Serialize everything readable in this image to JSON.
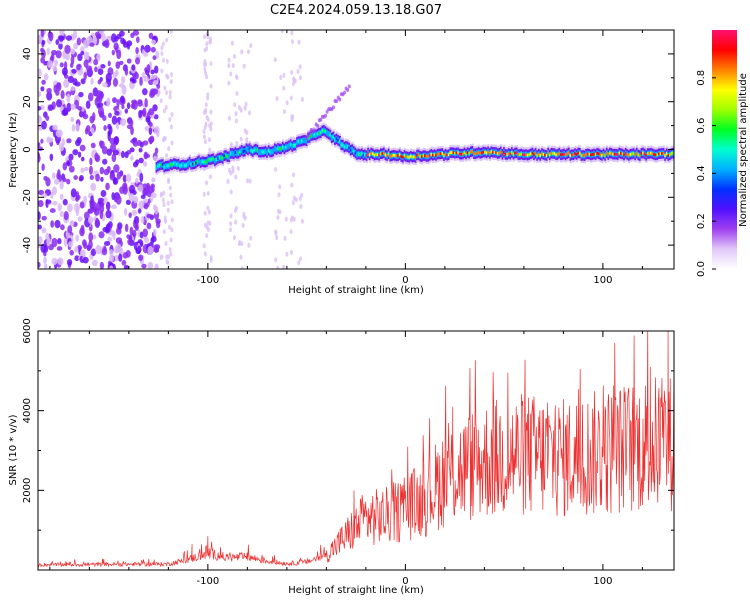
{
  "figure_title": "C2E4.2024.059.13.18.G07",
  "chart_data": [
    {
      "type": "heatmap",
      "xlabel": "Height of straight line (km)",
      "ylabel": "Frequency (Hz)",
      "xlim": [
        -186,
        136
      ],
      "ylim": [
        -50,
        50
      ],
      "x_ticks": [
        -100,
        0,
        100
      ],
      "y_ticks": [
        -40,
        -20,
        0,
        20,
        40
      ],
      "colorbar": {
        "label": "Normalized spectral amplitude",
        "range": [
          0.0,
          1.0
        ],
        "ticks": [
          0.0,
          0.2,
          0.4,
          0.6,
          0.8
        ],
        "tick_labels": [
          "0.0",
          "0.2",
          "0.4",
          "0.6",
          "0.8"
        ],
        "colormap": [
          "#ffffff",
          "#e0c8f8",
          "#a040f0",
          "#5010ff",
          "#0030ff",
          "#00b0ff",
          "#00ffd0",
          "#00ff20",
          "#a0ff00",
          "#ffff00",
          "#ff8000",
          "#ff0000",
          "#ff1070"
        ]
      },
      "ridge": {
        "x": [
          -126,
          -110,
          -95,
          -80,
          -70,
          -60,
          -50,
          -42,
          -35,
          -28,
          -24,
          -20,
          -10,
          0,
          20,
          40,
          60,
          80,
          100,
          120,
          136
        ],
        "y": [
          -7,
          -6,
          -4,
          0,
          -1,
          1,
          4,
          8,
          4,
          0,
          -2,
          -2,
          -2,
          -3,
          -2,
          -1,
          -2,
          -2,
          -2,
          -2,
          -2
        ]
      },
      "noise_region_x": [
        -186,
        -125
      ],
      "grid": false
    },
    {
      "type": "line",
      "xlabel": "Height of straight line (km)",
      "ylabel": "SNR (10 * v/v)",
      "xlim": [
        -186,
        136
      ],
      "ylim": [
        0,
        6000
      ],
      "x_ticks": [
        -100,
        0,
        100
      ],
      "y_ticks": [
        2000,
        4000,
        6000
      ],
      "color": "#ee3030",
      "trend": {
        "x": [
          -186,
          -120,
          -110,
          -100,
          -90,
          -80,
          -70,
          -60,
          -50,
          -40,
          -30,
          -20,
          -10,
          0,
          10,
          20,
          40,
          60,
          80,
          100,
          120,
          136
        ],
        "y": [
          130,
          150,
          260,
          420,
          310,
          330,
          220,
          160,
          200,
          380,
          850,
          1300,
          1350,
          1550,
          1800,
          2350,
          2750,
          2900,
          2800,
          2950,
          3150,
          3200
        ]
      },
      "spikes": [
        {
          "x": -108,
          "y": 650
        },
        {
          "x": -100,
          "y": 850
        },
        {
          "x": -26,
          "y": 2000
        },
        {
          "x": 24,
          "y": 4100
        },
        {
          "x": 72,
          "y": 4200
        },
        {
          "x": 106,
          "y": 5700
        },
        {
          "x": 124,
          "y": 5100
        },
        {
          "x": 133,
          "y": 6000
        }
      ],
      "grid": false
    }
  ]
}
